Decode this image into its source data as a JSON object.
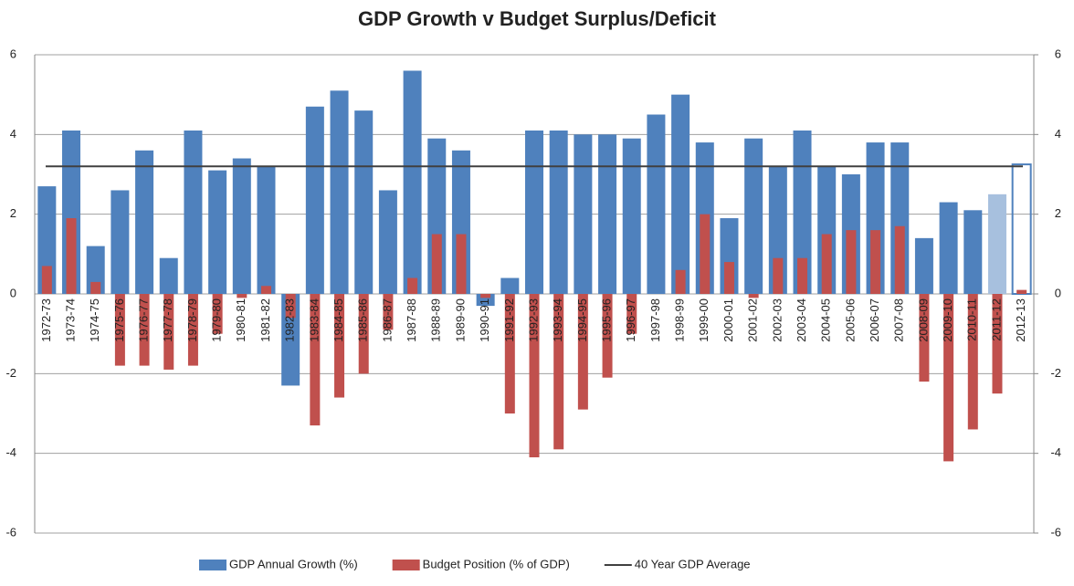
{
  "chart_data": {
    "type": "bar",
    "title": "GDP Growth v Budget Surplus/Deficit",
    "categories": [
      "1972-73",
      "1973-74",
      "1974-75",
      "1975-76",
      "1976-77",
      "1977-78",
      "1978-79",
      "1979-80",
      "1980-81",
      "1981-82",
      "1982-83",
      "1983-84",
      "1984-85",
      "1985-86",
      "1986-87",
      "1987-88",
      "1988-89",
      "1989-90",
      "1990-91",
      "1991-92",
      "1992-93",
      "1993-94",
      "1994-95",
      "1995-96",
      "1996-97",
      "1997-98",
      "1998-99",
      "1999-00",
      "2000-01",
      "2001-02",
      "2002-03",
      "2003-04",
      "2004-05",
      "2005-06",
      "2006-07",
      "2007-08",
      "2008-09",
      "2009-10",
      "2010-11",
      "2011-12",
      "2012-13"
    ],
    "series": [
      {
        "name": "GDP Annual Growth (%)",
        "color": "#4f81bd",
        "kind": "bar",
        "point_colors": [
          "#4f81bd",
          "#4f81bd",
          "#4f81bd",
          "#4f81bd",
          "#4f81bd",
          "#4f81bd",
          "#4f81bd",
          "#4f81bd",
          "#4f81bd",
          "#4f81bd",
          "#4f81bd",
          "#4f81bd",
          "#4f81bd",
          "#4f81bd",
          "#4f81bd",
          "#4f81bd",
          "#4f81bd",
          "#4f81bd",
          "#4f81bd",
          "#4f81bd",
          "#4f81bd",
          "#4f81bd",
          "#4f81bd",
          "#4f81bd",
          "#4f81bd",
          "#4f81bd",
          "#4f81bd",
          "#4f81bd",
          "#4f81bd",
          "#4f81bd",
          "#4f81bd",
          "#4f81bd",
          "#4f81bd",
          "#4f81bd",
          "#4f81bd",
          "#4f81bd",
          "#4f81bd",
          "#4f81bd",
          "#4f81bd",
          "#a7c0de",
          "none"
        ],
        "values": [
          2.7,
          4.1,
          1.2,
          2.6,
          3.6,
          0.9,
          4.1,
          3.1,
          3.4,
          3.2,
          -2.3,
          4.7,
          5.1,
          4.6,
          2.6,
          5.6,
          3.9,
          3.6,
          -0.3,
          0.4,
          4.1,
          4.1,
          4.0,
          4.0,
          3.9,
          4.5,
          5.0,
          3.8,
          1.9,
          3.9,
          3.2,
          4.1,
          3.2,
          3.0,
          3.8,
          3.8,
          1.4,
          2.3,
          2.1,
          2.5,
          3.25
        ]
      },
      {
        "name": "Budget Position (% of GDP)",
        "color": "#c0504d",
        "kind": "bar",
        "values": [
          0.7,
          1.9,
          0.3,
          -1.8,
          -1.8,
          -1.9,
          -1.8,
          -1.0,
          -0.1,
          0.2,
          -0.6,
          -3.3,
          -2.6,
          -2.0,
          -0.9,
          0.4,
          1.5,
          1.5,
          -0.1,
          -3.0,
          -4.1,
          -3.9,
          -2.9,
          -2.1,
          -1.0,
          0,
          0.6,
          2.0,
          0.8,
          -0.1,
          0.9,
          0.9,
          1.5,
          1.6,
          1.6,
          1.7,
          -2.2,
          -4.2,
          -3.4,
          -2.5,
          0.1
        ]
      },
      {
        "name": "40 Year GDP Average",
        "color": "#404040",
        "kind": "line",
        "values": [
          3.2,
          3.2,
          3.2,
          3.2,
          3.2,
          3.2,
          3.2,
          3.2,
          3.2,
          3.2,
          3.2,
          3.2,
          3.2,
          3.2,
          3.2,
          3.2,
          3.2,
          3.2,
          3.2,
          3.2,
          3.2,
          3.2,
          3.2,
          3.2,
          3.2,
          3.2,
          3.2,
          3.2,
          3.2,
          3.2,
          3.2,
          3.2,
          3.2,
          3.2,
          3.2,
          3.2,
          3.2,
          3.2,
          3.2,
          3.2,
          3.2
        ]
      }
    ],
    "ylim": [
      -6,
      6
    ],
    "yticks": [
      -6,
      -4,
      -2,
      0,
      2,
      4,
      6
    ],
    "y2lim": [
      -6,
      6
    ],
    "y2ticks": [
      -6,
      -4,
      -2,
      0,
      2,
      4,
      6
    ],
    "grid": true,
    "legend": "bottom"
  }
}
